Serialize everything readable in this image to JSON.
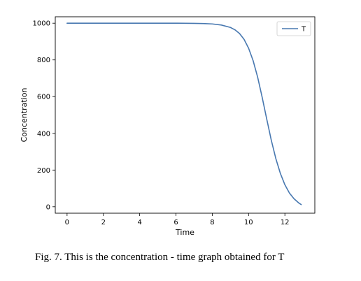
{
  "chart_data": {
    "type": "line",
    "title": "",
    "xlabel": "Time",
    "ylabel": "Concentration",
    "xlim": [
      -0.65,
      13.65
    ],
    "ylim": [
      -35,
      1035
    ],
    "xticks": [
      0,
      2,
      4,
      6,
      8,
      10,
      12
    ],
    "yticks": [
      0,
      200,
      400,
      600,
      800,
      1000
    ],
    "grid": false,
    "legend_position": "top-right",
    "series": [
      {
        "name": "T",
        "color": "#4878b0",
        "x": [
          0,
          2,
          4,
          6,
          7,
          7.5,
          8,
          8.5,
          9,
          9.25,
          9.5,
          9.75,
          10,
          10.25,
          10.5,
          10.75,
          11,
          11.25,
          11.5,
          11.75,
          12,
          12.25,
          12.5,
          12.75,
          12.9
        ],
        "y": [
          1000,
          1000,
          1000,
          1000,
          999,
          998,
          996,
          990,
          977,
          964,
          944,
          912,
          864,
          796,
          706,
          596,
          478,
          363,
          263,
          182,
          120,
          75,
          44,
          22,
          12
        ]
      }
    ]
  },
  "caption": "Fig. 7.  This is the concentration - time graph obtained for T"
}
